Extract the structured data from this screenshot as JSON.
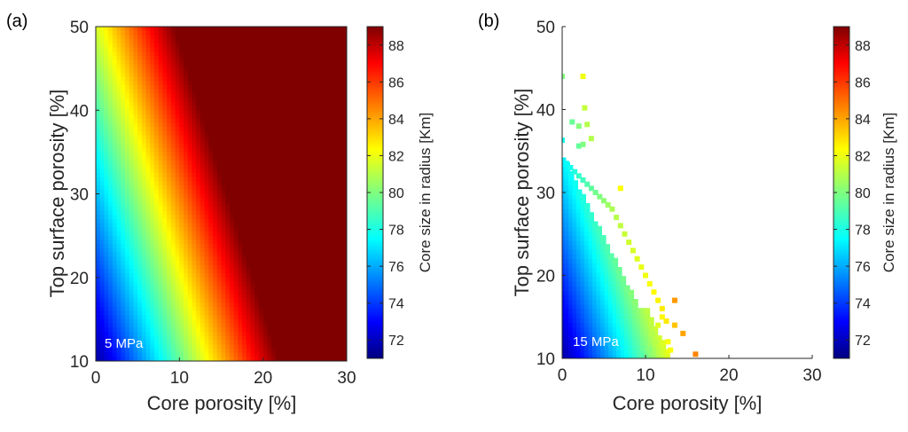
{
  "chart_data": [
    {
      "type": "heatmap",
      "panel_label": "(a)",
      "annotation": "5 MPa",
      "xlabel": "Core porosity [%]",
      "ylabel": "Top surface porosity [%]",
      "xlim": [
        0,
        30
      ],
      "ylim": [
        10,
        50
      ],
      "xticks": [
        "0",
        "10",
        "20",
        "30"
      ],
      "yticks": [
        "10",
        "20",
        "30",
        "40",
        "50"
      ],
      "colorbar": {
        "label": "Core size in radius [Km]",
        "range": [
          71,
          89
        ],
        "ticks": [
          "72",
          "74",
          "76",
          "78",
          "80",
          "82",
          "84",
          "86",
          "88"
        ],
        "colormap": "jet"
      },
      "field": {
        "description_values": "core radius (Km) approx. linear in core and top-surface porosity, saturating at 89",
        "value_at_core0_top10": 71.5,
        "increase_per_core_pct": 0.8,
        "increase_per_top_pct": 0.25
      }
    },
    {
      "type": "scatter",
      "panel_label": "(b)",
      "annotation": "15 MPa",
      "xlabel": "Core porosity [%]",
      "ylabel": "Top surface porosity [%]",
      "xlim": [
        0,
        30
      ],
      "ylim": [
        10,
        50
      ],
      "xticks": [
        "0",
        "10",
        "20",
        "30"
      ],
      "yticks": [
        "10",
        "20",
        "30",
        "40",
        "50"
      ],
      "colorbar": {
        "label": "Core size in radius [Km]",
        "range": [
          71,
          89
        ],
        "ticks": [
          "72",
          "74",
          "76",
          "78",
          "80",
          "82",
          "84",
          "86",
          "88"
        ],
        "colormap": "jet"
      },
      "points": [
        [
          0,
          44
        ],
        [
          2.5,
          44
        ],
        [
          2.7,
          40.2
        ],
        [
          1.2,
          38.5
        ],
        [
          2,
          38
        ],
        [
          3,
          38.2
        ],
        [
          3.5,
          36.5
        ],
        [
          0,
          36.3
        ],
        [
          2,
          35.6
        ],
        [
          2.5,
          35.8
        ],
        [
          7,
          30.5
        ],
        [
          13.5,
          17
        ],
        [
          12.5,
          14.5
        ],
        [
          13.5,
          14
        ],
        [
          14.5,
          13
        ],
        [
          12.7,
          12
        ],
        [
          13,
          11
        ],
        [
          16,
          10.5
        ],
        [
          0.5,
          33.5
        ],
        [
          1.0,
          33.0
        ],
        [
          1.5,
          32.5
        ],
        [
          2.0,
          32.0
        ],
        [
          2.5,
          31.5
        ],
        [
          3.0,
          31.0
        ],
        [
          3.5,
          30.5
        ],
        [
          4.0,
          30.0
        ],
        [
          4.5,
          29.5
        ],
        [
          5.0,
          29.0
        ],
        [
          5.5,
          28.5
        ],
        [
          6.0,
          28.0
        ],
        [
          6.5,
          27.0
        ],
        [
          7.0,
          26.0
        ],
        [
          7.5,
          25.0
        ],
        [
          8.0,
          24.0
        ],
        [
          8.5,
          23.0
        ],
        [
          9.0,
          22.0
        ],
        [
          9.5,
          21.0
        ],
        [
          10.0,
          20.0
        ],
        [
          10.5,
          19.0
        ],
        [
          11.0,
          18.0
        ],
        [
          11.5,
          17.0
        ],
        [
          12.0,
          16.0
        ],
        [
          12.0,
          15.0
        ],
        [
          11.5,
          14.0
        ],
        [
          10.8,
          13.0
        ],
        [
          11.2,
          12.0
        ],
        [
          10.5,
          11.0
        ],
        [
          9.5,
          10.5
        ]
      ]
    }
  ]
}
